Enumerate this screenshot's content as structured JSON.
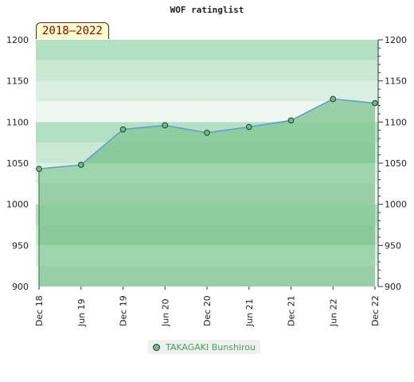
{
  "chart_data": {
    "type": "area",
    "title": "WOF ratinglist",
    "period": "2018–2022",
    "x": [
      "Dec 18",
      "Jun 19",
      "Dec 19",
      "Jun 20",
      "Dec 20",
      "Jun 21",
      "Dec 21",
      "Jun 22",
      "Dec 22"
    ],
    "series": [
      {
        "name": "TAKAGAKI Bunshirou",
        "values": [
          1043,
          1048,
          1091,
          1096,
          1087,
          1094,
          1102,
          1128,
          1123
        ]
      }
    ],
    "ylim": [
      900,
      1200
    ],
    "y_ticks": [
      900,
      950,
      1000,
      1050,
      1100,
      1150,
      1200
    ],
    "y_axis_both_sides": true,
    "colors": {
      "line": "#5b9bd5",
      "fill": "#6dbf7f",
      "marker": "#6dbf7f"
    }
  }
}
